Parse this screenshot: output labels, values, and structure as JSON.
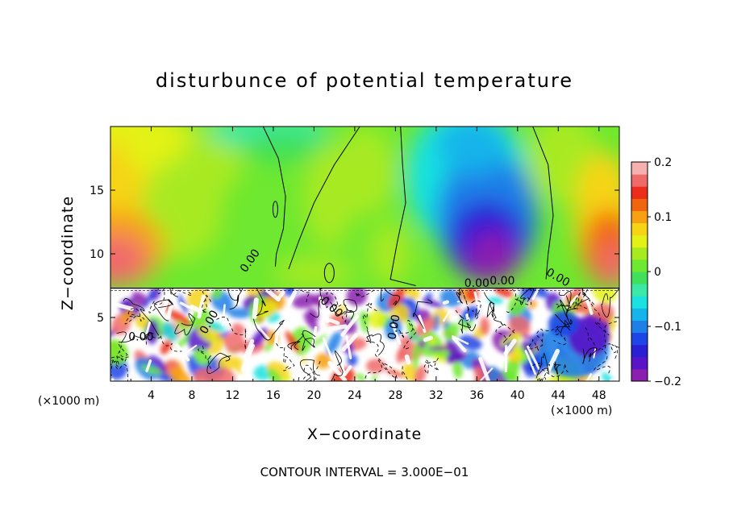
{
  "chart_data": {
    "type": "heatmap",
    "title": "disturbunce of potential temperature",
    "xlabel": "X−coordinate",
    "ylabel": "Z−coordinate",
    "x_unit": "(×1000 m)",
    "x_unit_right": "(×1000 m)",
    "contour_interval_text": "CONTOUR INTERVAL = 3.000E−01",
    "xlim": [
      0,
      50
    ],
    "ylim": [
      0,
      20
    ],
    "x_ticks": [
      4,
      8,
      12,
      16,
      20,
      24,
      28,
      32,
      36,
      40,
      44,
      48
    ],
    "y_ticks": [
      5,
      10,
      15
    ],
    "interface_height": 7.3,
    "colorbar": {
      "min": -0.2,
      "max": 0.2,
      "tick_values": [
        0.2,
        0.1,
        0,
        -0.1,
        -0.2
      ],
      "tick_labels": [
        "0.2",
        "0.1",
        "0",
        "−0.1",
        "−0.2"
      ],
      "colors": [
        "#8a1fb0",
        "#5a14c8",
        "#2b1fd6",
        "#1e46e6",
        "#1f7fe8",
        "#15b4ea",
        "#19e2e0",
        "#3ce8a6",
        "#41e05a",
        "#6ee830",
        "#a8ea20",
        "#e3f214",
        "#f6d414",
        "#f7a012",
        "#f2650f",
        "#ec2d1b",
        "#f06a6a",
        "#f7b0b0"
      ]
    },
    "contour_labels": [
      "0.00",
      "0.00",
      "0.00",
      "0.00",
      "0.00",
      "0.00",
      "0.00",
      "0.00"
    ],
    "features": [
      {
        "label": "warm anomaly left edge",
        "x": 1.5,
        "z": 10.0,
        "value": 0.15
      },
      {
        "label": "warm anomaly right edge",
        "x": 49.0,
        "z": 11.0,
        "value": 0.14
      },
      {
        "label": "yellow upper left",
        "x": 3.0,
        "z": 17.0,
        "value": 0.06
      },
      {
        "label": "cool center top",
        "x": 16.0,
        "z": 19.0,
        "value": -0.03
      },
      {
        "label": "cold core",
        "x": 37.5,
        "z": 11.0,
        "value": -0.19
      },
      {
        "label": "cold upper",
        "x": 34.0,
        "z": 18.0,
        "value": -0.07
      }
    ]
  }
}
